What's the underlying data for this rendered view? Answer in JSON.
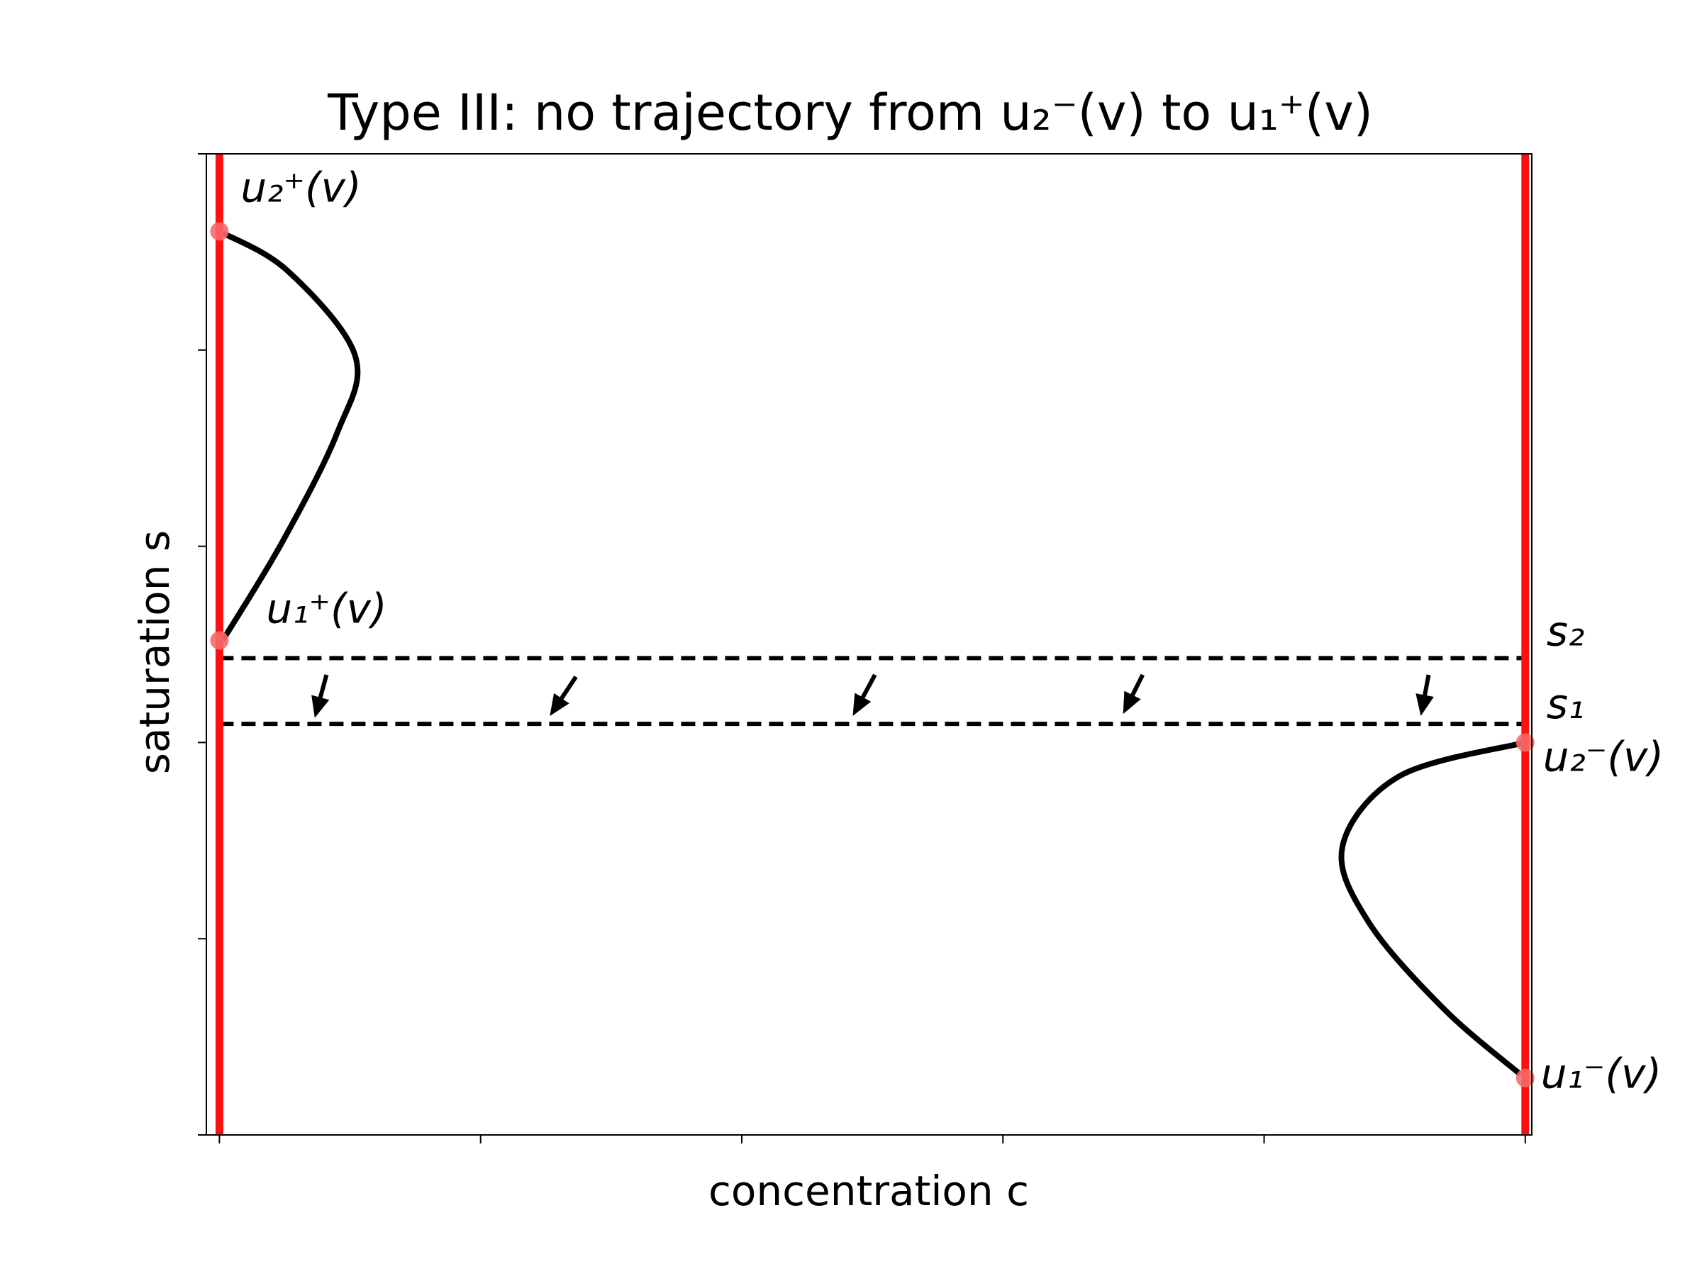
{
  "chart_data": {
    "type": "phase-plane",
    "title": "Type III: no trajectory from u₂⁻(v) to u₁⁺(v)",
    "xlabel": "concentration c",
    "ylabel": "saturation s",
    "xlim": [
      -0.01,
      1.005
    ],
    "ylim": [
      0,
      1
    ],
    "xticks": [
      0,
      0.2,
      0.4,
      0.6,
      0.8,
      1
    ],
    "yticks": [
      0,
      0.2,
      0.4,
      0.6,
      0.8,
      1
    ],
    "vlines": [
      {
        "x": 0,
        "color": "#ff1010"
      },
      {
        "x": 1,
        "color": "#ff1010"
      }
    ],
    "hlines": [
      {
        "y": 0.486,
        "label": "s₂",
        "color": "#000000"
      },
      {
        "y": 0.419,
        "label": "s₁",
        "color": "#000000"
      }
    ],
    "curves": [
      {
        "x": [
          0.0,
          0.052,
          0.104,
          0.09,
          0.048,
          0.0025
        ],
        "y": [
          0.921,
          0.881,
          0.794,
          0.715,
          0.604,
          0.504
        ],
        "color": "#000000"
      },
      {
        "x": [
          1.0,
          0.904,
          0.86,
          0.88,
          0.938,
          0.996
        ],
        "y": [
          0.4,
          0.366,
          0.294,
          0.217,
          0.128,
          0.062
        ],
        "color": "#000000"
      }
    ],
    "points": {
      "x": [
        0,
        0,
        1,
        1
      ],
      "y": [
        0.921,
        0.504,
        0.4,
        0.058
      ],
      "labels": [
        "u₂⁺(v)",
        "u₁⁺(v)",
        "u₂⁻(v)",
        "u₁⁻(v)"
      ],
      "color": "#f86a6a"
    },
    "arrows": {
      "x": [
        0.082,
        0.273,
        0.502,
        0.707,
        0.926
      ],
      "y": [
        0.469,
        0.467,
        0.469,
        0.469,
        0.469
      ],
      "dx": [
        -0.009,
        -0.02,
        -0.017,
        -0.015,
        -0.006
      ],
      "dy": [
        -0.044,
        -0.04,
        -0.042,
        -0.04,
        -0.042
      ],
      "color": "#000000"
    }
  }
}
